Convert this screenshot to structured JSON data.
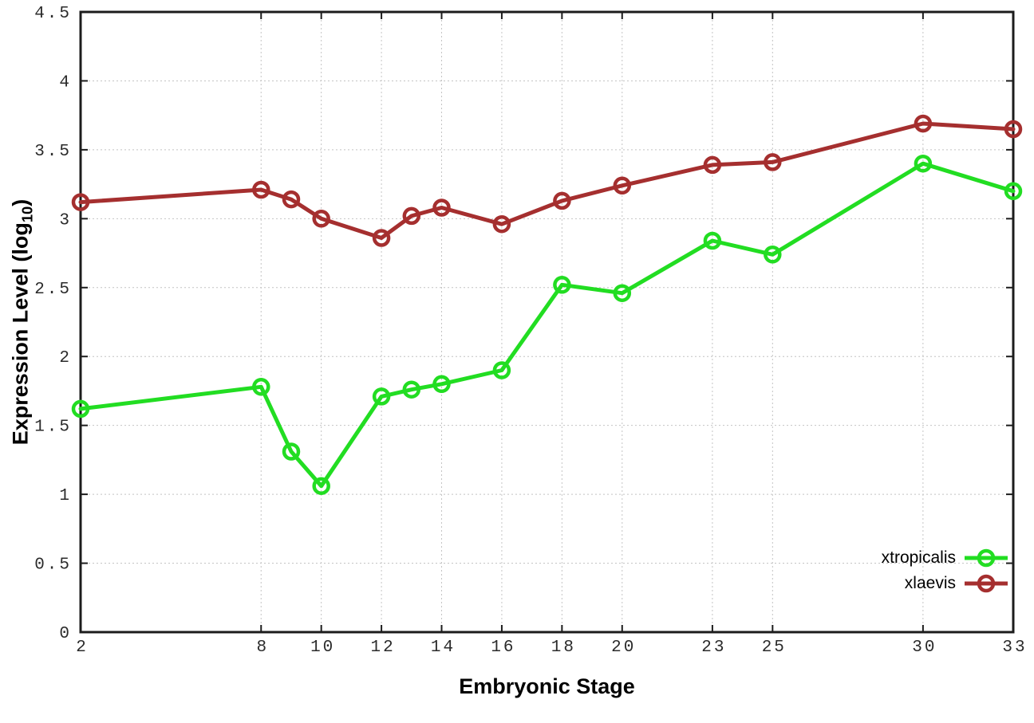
{
  "chart_data": {
    "type": "line",
    "title": "",
    "xlabel": "Embryonic Stage",
    "ylabel": "Expression Level (log10)",
    "x": [
      2,
      8,
      9,
      10,
      12,
      13,
      14,
      16,
      18,
      20,
      23,
      25,
      30,
      33
    ],
    "series": [
      {
        "name": "xtropicalis",
        "color": "#22dd22",
        "values": [
          1.62,
          1.78,
          1.31,
          1.06,
          1.71,
          1.76,
          1.8,
          1.9,
          2.52,
          2.46,
          2.84,
          2.74,
          3.4,
          3.2
        ]
      },
      {
        "name": "xlaevis",
        "color": "#a52f2f",
        "values": [
          3.12,
          3.21,
          3.14,
          3.0,
          2.86,
          3.02,
          3.08,
          2.96,
          3.13,
          3.24,
          3.39,
          3.41,
          3.69,
          3.65
        ]
      }
    ],
    "x_ticks": [
      2,
      8,
      10,
      12,
      14,
      16,
      18,
      20,
      23,
      25,
      30,
      33
    ],
    "y_ticks": [
      "0",
      "0.5",
      "1",
      "1.5",
      "2",
      "2.5",
      "3",
      "3.5",
      "4",
      "4.5"
    ],
    "xlim": [
      2,
      33
    ],
    "ylim": [
      0,
      4.5
    ],
    "grid": true,
    "legend_position": "bottom-right",
    "marker": "open-circle"
  },
  "labels": {
    "xlabel": "Embryonic Stage",
    "ylabel_prefix": "Expression Level (log",
    "ylabel_sub": "10",
    "ylabel_suffix": ")"
  },
  "colors": {
    "grid": "#c4c4c4",
    "axis": "#1c1c1c",
    "tick_text": "#2b2b2b",
    "background": "#ffffff"
  }
}
